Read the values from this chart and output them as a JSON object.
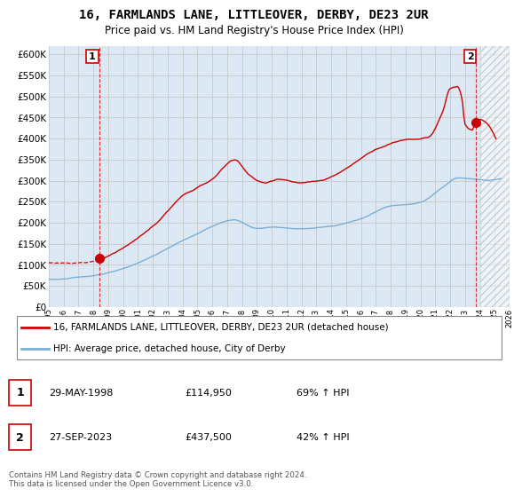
{
  "title": "16, FARMLANDS LANE, LITTLEOVER, DERBY, DE23 2UR",
  "subtitle": "Price paid vs. HM Land Registry's House Price Index (HPI)",
  "legend_line1": "16, FARMLANDS LANE, LITTLEOVER, DERBY, DE23 2UR (detached house)",
  "legend_line2": "HPI: Average price, detached house, City of Derby",
  "footer": "Contains HM Land Registry data © Crown copyright and database right 2024.\nThis data is licensed under the Open Government Licence v3.0.",
  "sale1_date": "29-MAY-1998",
  "sale1_price": 114950,
  "sale1_hpi": "69% ↑ HPI",
  "sale1_year": 1998.42,
  "sale2_date": "27-SEP-2023",
  "sale2_price": 437500,
  "sale2_hpi": "42% ↑ HPI",
  "sale2_year": 2023.75,
  "ylim": [
    0,
    620000
  ],
  "yticks": [
    0,
    50000,
    100000,
    150000,
    200000,
    250000,
    300000,
    350000,
    400000,
    450000,
    500000,
    550000,
    600000
  ],
  "xlim_start": 1995,
  "xlim_end": 2026,
  "price_color": "#cc0000",
  "hpi_color": "#7ab0d4",
  "grid_color": "#c8c8c8",
  "plot_bg_color": "#dce9f5",
  "hatch_start": 2024.0
}
